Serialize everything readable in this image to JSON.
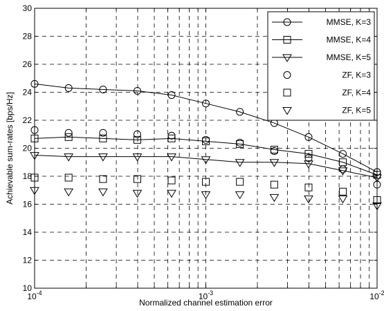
{
  "chart_data": {
    "type": "line",
    "xlabel": "Normalized channel estimation error",
    "ylabel": "Achievable sum-rates [bps/Hz]",
    "x_scale": "log",
    "xlim": [
      0.0001,
      0.01
    ],
    "ylim": [
      10,
      30
    ],
    "y_ticks": [
      10,
      12,
      14,
      16,
      18,
      20,
      22,
      24,
      26,
      28,
      30
    ],
    "x_ticks": [
      {
        "base": "10",
        "exp": "-4",
        "value": 0.0001
      },
      {
        "base": "10",
        "exp": "-3",
        "value": 0.001
      },
      {
        "base": "10",
        "exp": "-2",
        "value": 0.01
      }
    ],
    "grid": true,
    "legend_position": "top-right",
    "x": [
      0.0001,
      0.000158,
      0.000251,
      0.000398,
      0.000631,
      0.001,
      0.00158,
      0.00251,
      0.00398,
      0.00631,
      0.01
    ],
    "series": [
      {
        "name": "MMSE, K=3",
        "marker": "circle",
        "line": true,
        "values": [
          24.6,
          24.3,
          24.2,
          24.1,
          23.8,
          23.2,
          22.6,
          21.8,
          20.8,
          19.6,
          18.3
        ]
      },
      {
        "name": "MMSE, K=4",
        "marker": "square",
        "line": true,
        "values": [
          20.7,
          20.8,
          20.7,
          20.6,
          20.7,
          20.5,
          20.3,
          19.9,
          19.6,
          19.0,
          18.1
        ]
      },
      {
        "name": "MMSE, K=5",
        "marker": "triangle-down",
        "line": true,
        "values": [
          19.5,
          19.4,
          19.4,
          19.4,
          19.4,
          19.2,
          19.0,
          19.0,
          18.9,
          18.4,
          17.9
        ]
      },
      {
        "name": "ZF, K=3",
        "marker": "circle",
        "line": false,
        "values": [
          21.3,
          21.1,
          21.1,
          21.0,
          20.9,
          20.6,
          20.4,
          19.8,
          19.3,
          18.5,
          17.4
        ]
      },
      {
        "name": "ZF, K=4",
        "marker": "square",
        "line": false,
        "values": [
          17.9,
          17.9,
          17.8,
          17.8,
          17.7,
          17.6,
          17.6,
          17.4,
          17.2,
          16.9,
          16.3
        ]
      },
      {
        "name": "ZF, K=5",
        "marker": "triangle-down",
        "line": false,
        "values": [
          17.0,
          16.9,
          16.9,
          16.8,
          16.8,
          16.7,
          16.7,
          16.5,
          16.4,
          16.4,
          15.9
        ]
      }
    ]
  }
}
